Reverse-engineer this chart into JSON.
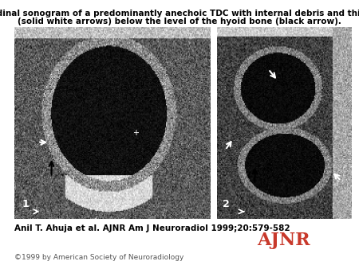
{
  "title_line1": "Longitudinal sonogram of a predominantly anechoic TDC with internal debris and thick walls",
  "title_line2": "(solid white arrows) below the level of the hyoid bone (black arrow).",
  "citation": "Anil T. Ahuja et al. AJNR Am J Neuroradiol 1999;20:579-582",
  "copyright": "©1999 by American Society of Neuroradiology",
  "background_color": "#ffffff",
  "title_fontsize": 7.5,
  "citation_fontsize": 7.5,
  "copyright_fontsize": 6.5,
  "ajnr_box_color": "#1a5fa8",
  "ajnr_text_color": "#c8392b",
  "ajnr_subtext_color": "#ffffff"
}
